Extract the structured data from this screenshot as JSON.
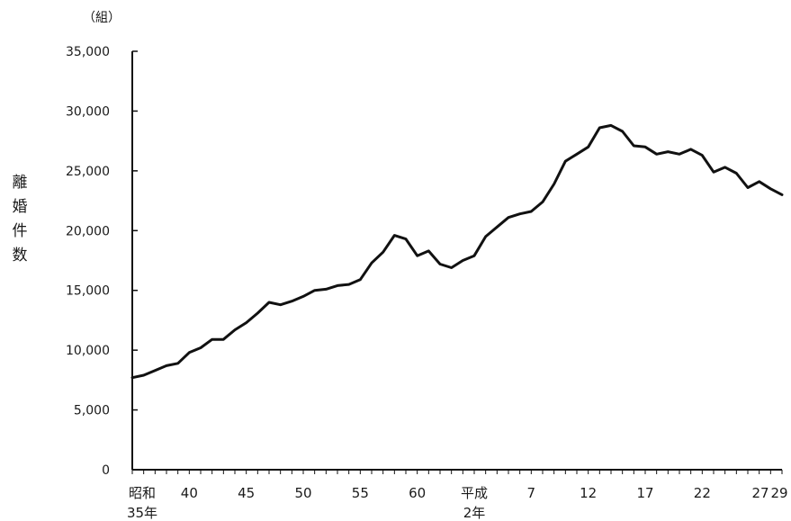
{
  "chart_data": {
    "type": "line",
    "title": "",
    "unit_label": "（組）",
    "ylabel": "離婚件数",
    "ylim": [
      0,
      35000
    ],
    "yticks": [
      "0",
      "5,000",
      "10,000",
      "15,000",
      "20,000",
      "25,000",
      "30,000",
      "35,000"
    ],
    "xlabel": "",
    "xticks": [
      {
        "year": 1960,
        "lines": [
          "昭和",
          "35年"
        ]
      },
      {
        "year": 1965,
        "lines": [
          "40"
        ]
      },
      {
        "year": 1970,
        "lines": [
          "45"
        ]
      },
      {
        "year": 1975,
        "lines": [
          "50"
        ]
      },
      {
        "year": 1980,
        "lines": [
          "55"
        ]
      },
      {
        "year": 1985,
        "lines": [
          "60"
        ]
      },
      {
        "year": 1990,
        "lines": [
          "平成",
          "2年"
        ]
      },
      {
        "year": 1995,
        "lines": [
          "7"
        ]
      },
      {
        "year": 2000,
        "lines": [
          "12"
        ]
      },
      {
        "year": 2005,
        "lines": [
          "17"
        ]
      },
      {
        "year": 2010,
        "lines": [
          "22"
        ]
      },
      {
        "year": 2015,
        "lines": [
          "27"
        ]
      },
      {
        "year": 2017,
        "lines": [
          "29"
        ]
      }
    ],
    "grid": false,
    "legend": "none",
    "series": [
      {
        "x": [
          1960,
          1961,
          1962,
          1963,
          1964,
          1965,
          1966,
          1967,
          1968,
          1969,
          1970,
          1971,
          1972,
          1973,
          1974,
          1975,
          1976,
          1977,
          1978,
          1979,
          1980,
          1981,
          1982,
          1983,
          1984,
          1985,
          1986,
          1987,
          1988,
          1989,
          1990,
          1991,
          1992,
          1993,
          1994,
          1995,
          1996,
          1997,
          1998,
          1999,
          2000,
          2001,
          2002,
          2003,
          2004,
          2005,
          2006,
          2007,
          2008,
          2009,
          2010,
          2011,
          2012,
          2013,
          2014,
          2015,
          2016,
          2017
        ],
        "values": [
          7700,
          7900,
          8300,
          8700,
          8900,
          9800,
          10200,
          10900,
          10900,
          11700,
          12300,
          13100,
          14000,
          13800,
          14100,
          14500,
          15000,
          15100,
          15400,
          15500,
          15900,
          17300,
          18200,
          19600,
          19300,
          17900,
          18300,
          17200,
          16900,
          17500,
          17900,
          19500,
          20300,
          21100,
          21400,
          21600,
          22400,
          23900,
          25800,
          26400,
          27000,
          28600,
          28800,
          28300,
          27100,
          27000,
          26400,
          26600,
          26400,
          26800,
          26300,
          24900,
          25300,
          24800,
          23600,
          24100,
          23500,
          23000
        ]
      }
    ]
  }
}
